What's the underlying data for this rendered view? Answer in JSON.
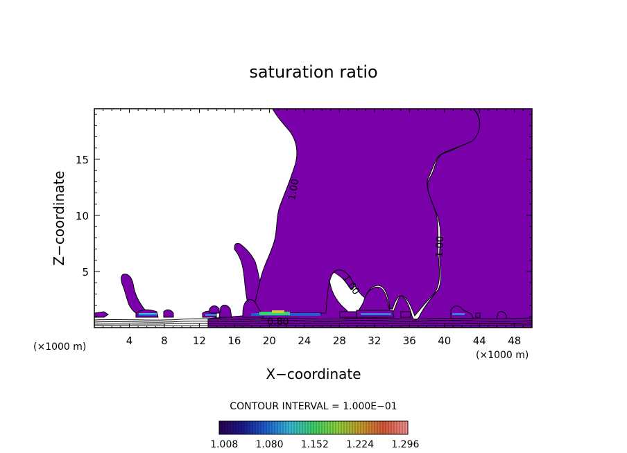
{
  "chart_data": {
    "type": "contour",
    "title": "saturation ratio",
    "xlabel": "X−coordinate",
    "ylabel": "Z−coordinate",
    "x_unit": "(×1000 m)",
    "y_unit": "(×1000 m)",
    "xlim": [
      0,
      50
    ],
    "ylim": [
      0,
      19.5
    ],
    "x_ticks": [
      4,
      8,
      12,
      16,
      20,
      24,
      28,
      32,
      36,
      40,
      44,
      48
    ],
    "y_ticks": [
      5,
      10,
      15
    ],
    "contour_interval_text": "CONTOUR INTERVAL = 1.000E−01",
    "contour_labels": [
      {
        "text": "1.00",
        "x": 22.8,
        "y": 12.3,
        "angle": -80
      },
      {
        "text": "1.00",
        "x": 39.5,
        "y": 7.2,
        "angle": -88
      },
      {
        "text": "1.00",
        "x": 29.3,
        "y": 3.8,
        "angle": 55
      },
      {
        "text": "0.80",
        "x": 21.0,
        "y": 0.5,
        "angle": 0
      }
    ],
    "colorbar": {
      "ticks": [
        "1.008",
        "1.080",
        "1.152",
        "1.224",
        "1.296"
      ],
      "min": 1.0,
      "max": 1.3,
      "colors": [
        "#2a0050",
        "#1a1a8c",
        "#1f5fd0",
        "#37b8d8",
        "#3ccf6a",
        "#8bd13a",
        "#c59a2a",
        "#d8553a",
        "#f09090"
      ]
    },
    "fill_color": "#7a00aa",
    "grid": false
  }
}
